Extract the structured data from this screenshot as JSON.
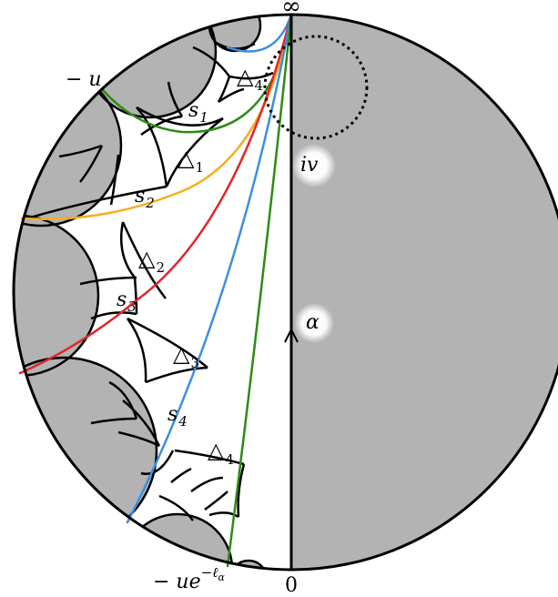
{
  "labels": {
    "infinity": "∞",
    "minus_u": "− u",
    "s1": "s",
    "s1_sub": "1",
    "s2": "s",
    "s2_sub": "2",
    "s3": "s",
    "s3_sub": "3",
    "s4": "s",
    "s4_sub": "4",
    "tri1": "△",
    "tri1_sub": "1",
    "tri2": "△",
    "tri2_sub": "2",
    "tri3": "△",
    "tri3_sub": "3",
    "tri4_top": "△",
    "tri4_top_sub": "4",
    "tri4_bottom": "△",
    "tri4_bottom_sub": "4",
    "iv": "iv",
    "alpha": "α",
    "bottom_left_main": "− ue",
    "bottom_left_sup": "−ℓ",
    "bottom_left_supsub": "α",
    "zero": "0"
  },
  "colors": {
    "gray_fill": "#b3b3b3",
    "green": "#2e8b12",
    "orange": "#f5ae1e",
    "red": "#e0262a",
    "blue": "#3a8fe0",
    "black": "#000000"
  }
}
